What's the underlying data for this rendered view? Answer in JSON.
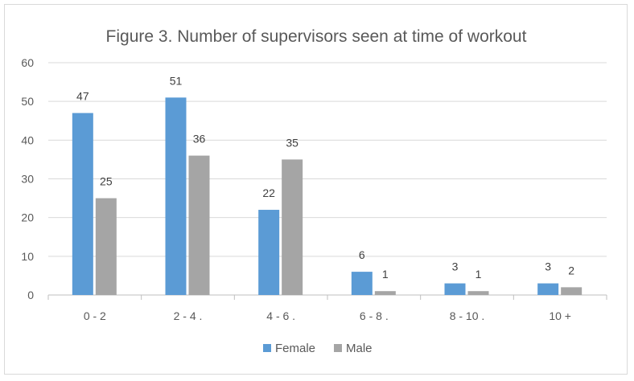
{
  "chart_data": {
    "type": "bar",
    "title": "Figure 3. Number of supervisors seen at time of workout",
    "xlabel": "",
    "ylabel": "",
    "categories": [
      "0 - 2",
      "2 - 4  .",
      "4 - 6 .",
      "6 - 8 .",
      "8 - 10  .",
      "10 +"
    ],
    "series": [
      {
        "name": "Female",
        "color": "#5b9bd5",
        "values": [
          47,
          51,
          22,
          6,
          3,
          3
        ]
      },
      {
        "name": "Male",
        "color": "#a5a5a5",
        "values": [
          25,
          36,
          35,
          1,
          1,
          2
        ]
      }
    ],
    "ylim": [
      0,
      60
    ],
    "yticks": [
      0,
      10,
      20,
      30,
      40,
      50,
      60
    ],
    "grid": true,
    "legend_position": "bottom",
    "data_labels": true
  }
}
